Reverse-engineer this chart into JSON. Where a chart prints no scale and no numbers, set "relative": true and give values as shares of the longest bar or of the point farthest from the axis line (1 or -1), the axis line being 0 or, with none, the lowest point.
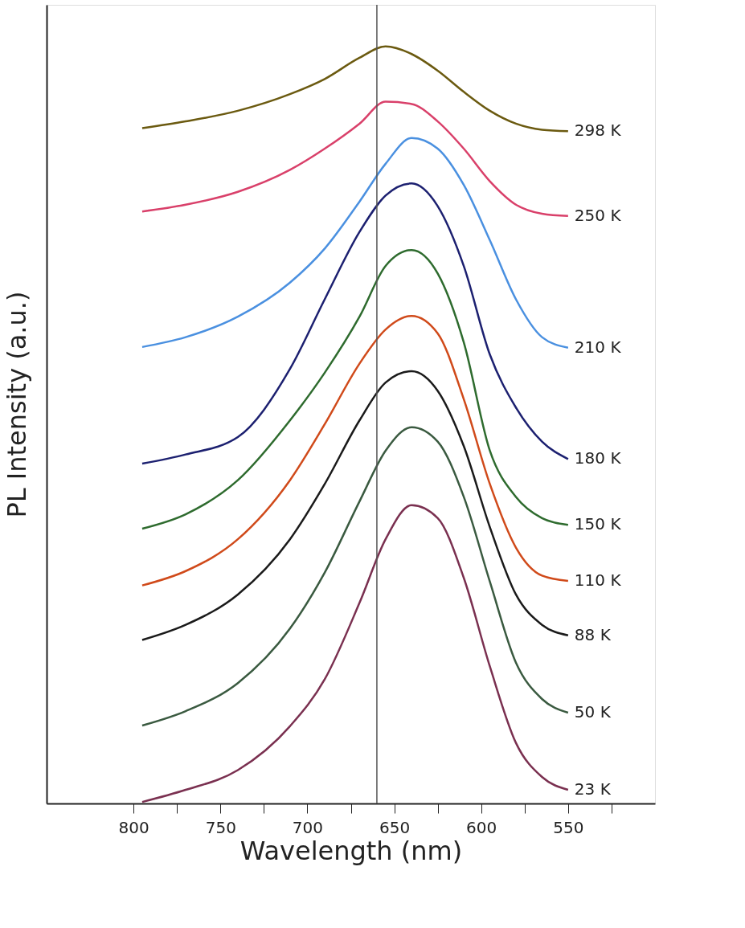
{
  "chart_data": {
    "type": "line",
    "relative": true,
    "xlabel": "Wavelength (nm)",
    "ylabel": "PL Intensity (a.u.)",
    "x": [
      795,
      770,
      740,
      710,
      690,
      670,
      655,
      640,
      625,
      610,
      595,
      580,
      565,
      550
    ],
    "xlim": [
      850,
      500
    ],
    "xticks": [
      800,
      {
        "value": 775,
        "label": null
      },
      750,
      {
        "value": 725,
        "label": null
      },
      700,
      {
        "value": 675,
        "label": null
      },
      650,
      {
        "value": 625,
        "label": null
      },
      600,
      {
        "value": 575,
        "label": null
      },
      550,
      {
        "value": 525,
        "label": null
      }
    ],
    "grid": false,
    "legend": false,
    "marker": "none",
    "line_style": "solid",
    "ref_lines": [
      {
        "axis": "x",
        "value": 660,
        "color": "#555555"
      }
    ],
    "series": [
      {
        "name": "298 K",
        "color": "#6b5a10",
        "values": [
          0.892,
          0.901,
          0.915,
          0.937,
          0.957,
          0.985,
          1.0,
          0.99,
          0.968,
          0.94,
          0.915,
          0.898,
          0.89,
          0.888
        ]
      },
      {
        "name": "250 K",
        "color": "#d9406a",
        "values": [
          0.782,
          0.791,
          0.808,
          0.837,
          0.865,
          0.898,
          0.927,
          0.924,
          0.901,
          0.865,
          0.822,
          0.791,
          0.779,
          0.776
        ]
      },
      {
        "name": "210 K",
        "color": "#4a90e0",
        "values": [
          0.603,
          0.616,
          0.643,
          0.688,
          0.733,
          0.795,
          0.845,
          0.879,
          0.865,
          0.817,
          0.744,
          0.666,
          0.616,
          0.602
        ]
      },
      {
        "name": "180 K",
        "color": "#1c2070",
        "values": [
          0.449,
          0.461,
          0.484,
          0.574,
          0.666,
          0.755,
          0.803,
          0.819,
          0.789,
          0.71,
          0.593,
          0.523,
          0.478,
          0.455
        ]
      },
      {
        "name": "150 K",
        "color": "#2e6b2e",
        "values": [
          0.363,
          0.382,
          0.427,
          0.506,
          0.569,
          0.643,
          0.71,
          0.731,
          0.7,
          0.609,
          0.466,
          0.405,
          0.377,
          0.368
        ]
      },
      {
        "name": "110 K",
        "color": "#d04a1a",
        "values": [
          0.288,
          0.307,
          0.349,
          0.427,
          0.501,
          0.581,
          0.626,
          0.644,
          0.621,
          0.534,
          0.422,
          0.338,
          0.301,
          0.294
        ]
      },
      {
        "name": "88 K",
        "color": "#1a1a1a",
        "values": [
          0.216,
          0.236,
          0.276,
          0.349,
          0.422,
          0.506,
          0.556,
          0.571,
          0.545,
          0.472,
          0.365,
          0.276,
          0.236,
          0.222
        ]
      },
      {
        "name": "50 K",
        "color": "#3a5a40",
        "values": [
          0.103,
          0.122,
          0.159,
          0.231,
          0.305,
          0.399,
          0.466,
          0.497,
          0.478,
          0.405,
          0.293,
          0.186,
          0.138,
          0.12
        ]
      },
      {
        "name": "23 K",
        "color": "#7a3050",
        "values": [
          0.002,
          0.018,
          0.044,
          0.102,
          0.164,
          0.265,
          0.349,
          0.394,
          0.377,
          0.298,
          0.181,
          0.08,
          0.035,
          0.018
        ]
      }
    ]
  }
}
